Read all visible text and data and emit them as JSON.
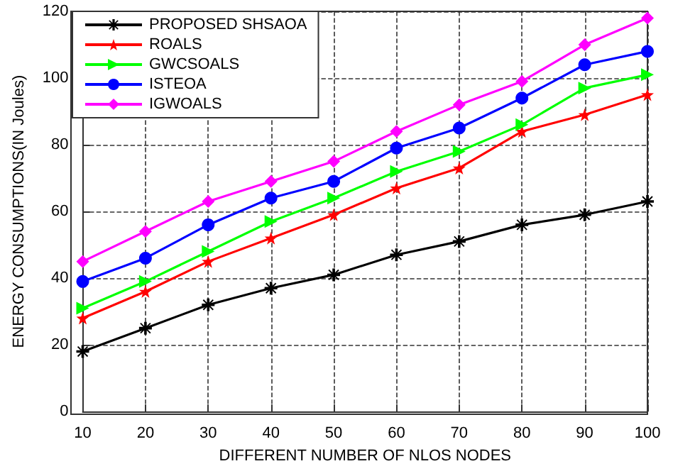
{
  "chart_data": {
    "type": "line",
    "xlabel": "DIFFERENT NUMBER OF NLOS NODES",
    "ylabel": "ENERGY CONSUMPTIONS(IN Joules)",
    "x": [
      10,
      20,
      30,
      40,
      50,
      60,
      70,
      80,
      90,
      100
    ],
    "series": [
      {
        "name": "PROPOSED SHSAOA",
        "color": "#000000",
        "marker": "cross",
        "values": [
          18,
          25,
          32,
          37,
          41,
          47,
          51,
          56,
          59,
          63
        ]
      },
      {
        "name": "ROALS",
        "color": "#ff0000",
        "marker": "star",
        "values": [
          28,
          36,
          45,
          52,
          59,
          67,
          73,
          84,
          89,
          95
        ]
      },
      {
        "name": "GWCSOALS",
        "color": "#00ff00",
        "marker": "triangle",
        "values": [
          31,
          39,
          48,
          57,
          64,
          72,
          78,
          86,
          97,
          101
        ]
      },
      {
        "name": "ISTEOA",
        "color": "#0000ff",
        "marker": "circle",
        "values": [
          39,
          46,
          56,
          64,
          69,
          79,
          85,
          94,
          104,
          108
        ]
      },
      {
        "name": "IGWOALS",
        "color": "#ff00ff",
        "marker": "diamond",
        "values": [
          45,
          54,
          63,
          69,
          75,
          84,
          92,
          99,
          110,
          118
        ]
      }
    ],
    "xlim": [
      10,
      100
    ],
    "xticks": [
      10,
      20,
      30,
      40,
      50,
      60,
      70,
      80,
      90,
      100
    ],
    "ylim": [
      0,
      120
    ],
    "yticks": [
      0,
      20,
      40,
      60,
      80,
      100,
      120
    ],
    "grid": true,
    "legend": "top left",
    "line_style": "solid"
  }
}
